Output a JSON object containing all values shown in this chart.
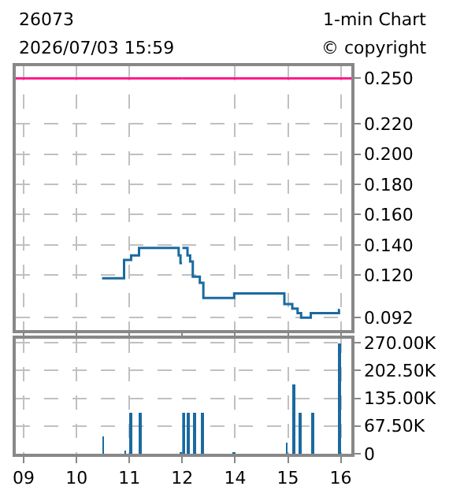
{
  "chart_data": [
    {
      "type": "step",
      "title": "26073",
      "subtitle": "2026/07/03 15:59",
      "annotations": [
        "1-min Chart",
        "© copyright"
      ],
      "x": [
        10.483,
        10.9,
        11.033,
        11.183,
        11.933,
        11.967,
        12.0
      ],
      "series": [
        {
          "color": "#1a6aa0",
          "values": [
            0.118,
            0.13,
            0.133,
            0.138,
            0.133,
            0.128,
            0.128
          ]
        }
      ],
      "xlim": [
        8.85,
        12
      ],
      "xticks": [
        9,
        10,
        11,
        12
      ],
      "ylim": [
        0.084,
        0.258
      ],
      "yticks": [
        0.25,
        0.22,
        0.2,
        0.18,
        0.16,
        0.14,
        0.12,
        0.092
      ],
      "ref_lines": [
        {
          "axis": "y",
          "value": 0.25,
          "color": "#ff1a8c"
        }
      ],
      "grid": true,
      "tick_labels": false
    },
    {
      "type": "step",
      "x": [
        13.0,
        13.1,
        13.15,
        13.2,
        13.333,
        13.4,
        13.983,
        14.933,
        15.0,
        15.083,
        15.183,
        15.25,
        15.433,
        15.967,
        15.983
      ],
      "series": [
        {
          "color": "#1a6aa0",
          "values": [
            0.138,
            0.133,
            0.129,
            0.119,
            0.115,
            0.105,
            0.108,
            0.101,
            0.101,
            0.098,
            0.095,
            0.092,
            0.095,
            0.097,
            0.097
          ]
        }
      ],
      "xlim": [
        13,
        16.2
      ],
      "xticks": [
        14,
        15,
        16
      ],
      "ylim": [
        0.084,
        0.258
      ],
      "yticks": [
        {
          "value": 0.25,
          "label": "0.250"
        },
        {
          "value": 0.22,
          "label": "0.220"
        },
        {
          "value": 0.2,
          "label": "0.200"
        },
        {
          "value": 0.18,
          "label": "0.180"
        },
        {
          "value": 0.16,
          "label": "0.160"
        },
        {
          "value": 0.14,
          "label": "0.140"
        },
        {
          "value": 0.12,
          "label": "0.120"
        },
        {
          "value": 0.092,
          "label": "0.092"
        }
      ],
      "ref_lines": [
        {
          "axis": "y",
          "value": 0.25,
          "color": "#ff1a8c"
        }
      ],
      "grid": true,
      "tick_labels": "y"
    },
    {
      "type": "bar",
      "x": [
        10.5,
        10.917,
        11.033,
        11.2,
        11.983
      ],
      "series": [
        {
          "color": "#1a6aa0",
          "values": [
            42000,
            9000,
            100000,
            100000,
            4000
          ]
        }
      ],
      "xlim": [
        8.85,
        12
      ],
      "xticks": [
        {
          "value": 9,
          "label": "09"
        },
        10,
        11,
        12
      ],
      "ylim": [
        0,
        280000
      ],
      "yticks": [
        0,
        67500,
        135000,
        202500,
        270000
      ],
      "grid": true,
      "tick_labels": "x"
    },
    {
      "type": "bar",
      "x": [
        13.033,
        13.117,
        13.233,
        13.383,
        13.4,
        13.983,
        14.983,
        15.117,
        15.233,
        15.467,
        15.983
      ],
      "series": [
        {
          "color": "#1a6aa0",
          "values": [
            100000,
            100000,
            100000,
            100000,
            4000,
            4000,
            27000,
            170000,
            100000,
            100000,
            270000
          ]
        }
      ],
      "xlim": [
        13,
        16.2
      ],
      "xticks": [
        14,
        15,
        16
      ],
      "ylim": [
        0,
        280000
      ],
      "yticks": [
        0,
        {
          "value": 67500,
          "label": "67.50K"
        },
        {
          "value": 135000,
          "label": "135.00K"
        },
        {
          "value": 202500,
          "label": "202.50K"
        },
        {
          "value": 270000,
          "label": "270.00K"
        }
      ],
      "grid": true
    }
  ]
}
